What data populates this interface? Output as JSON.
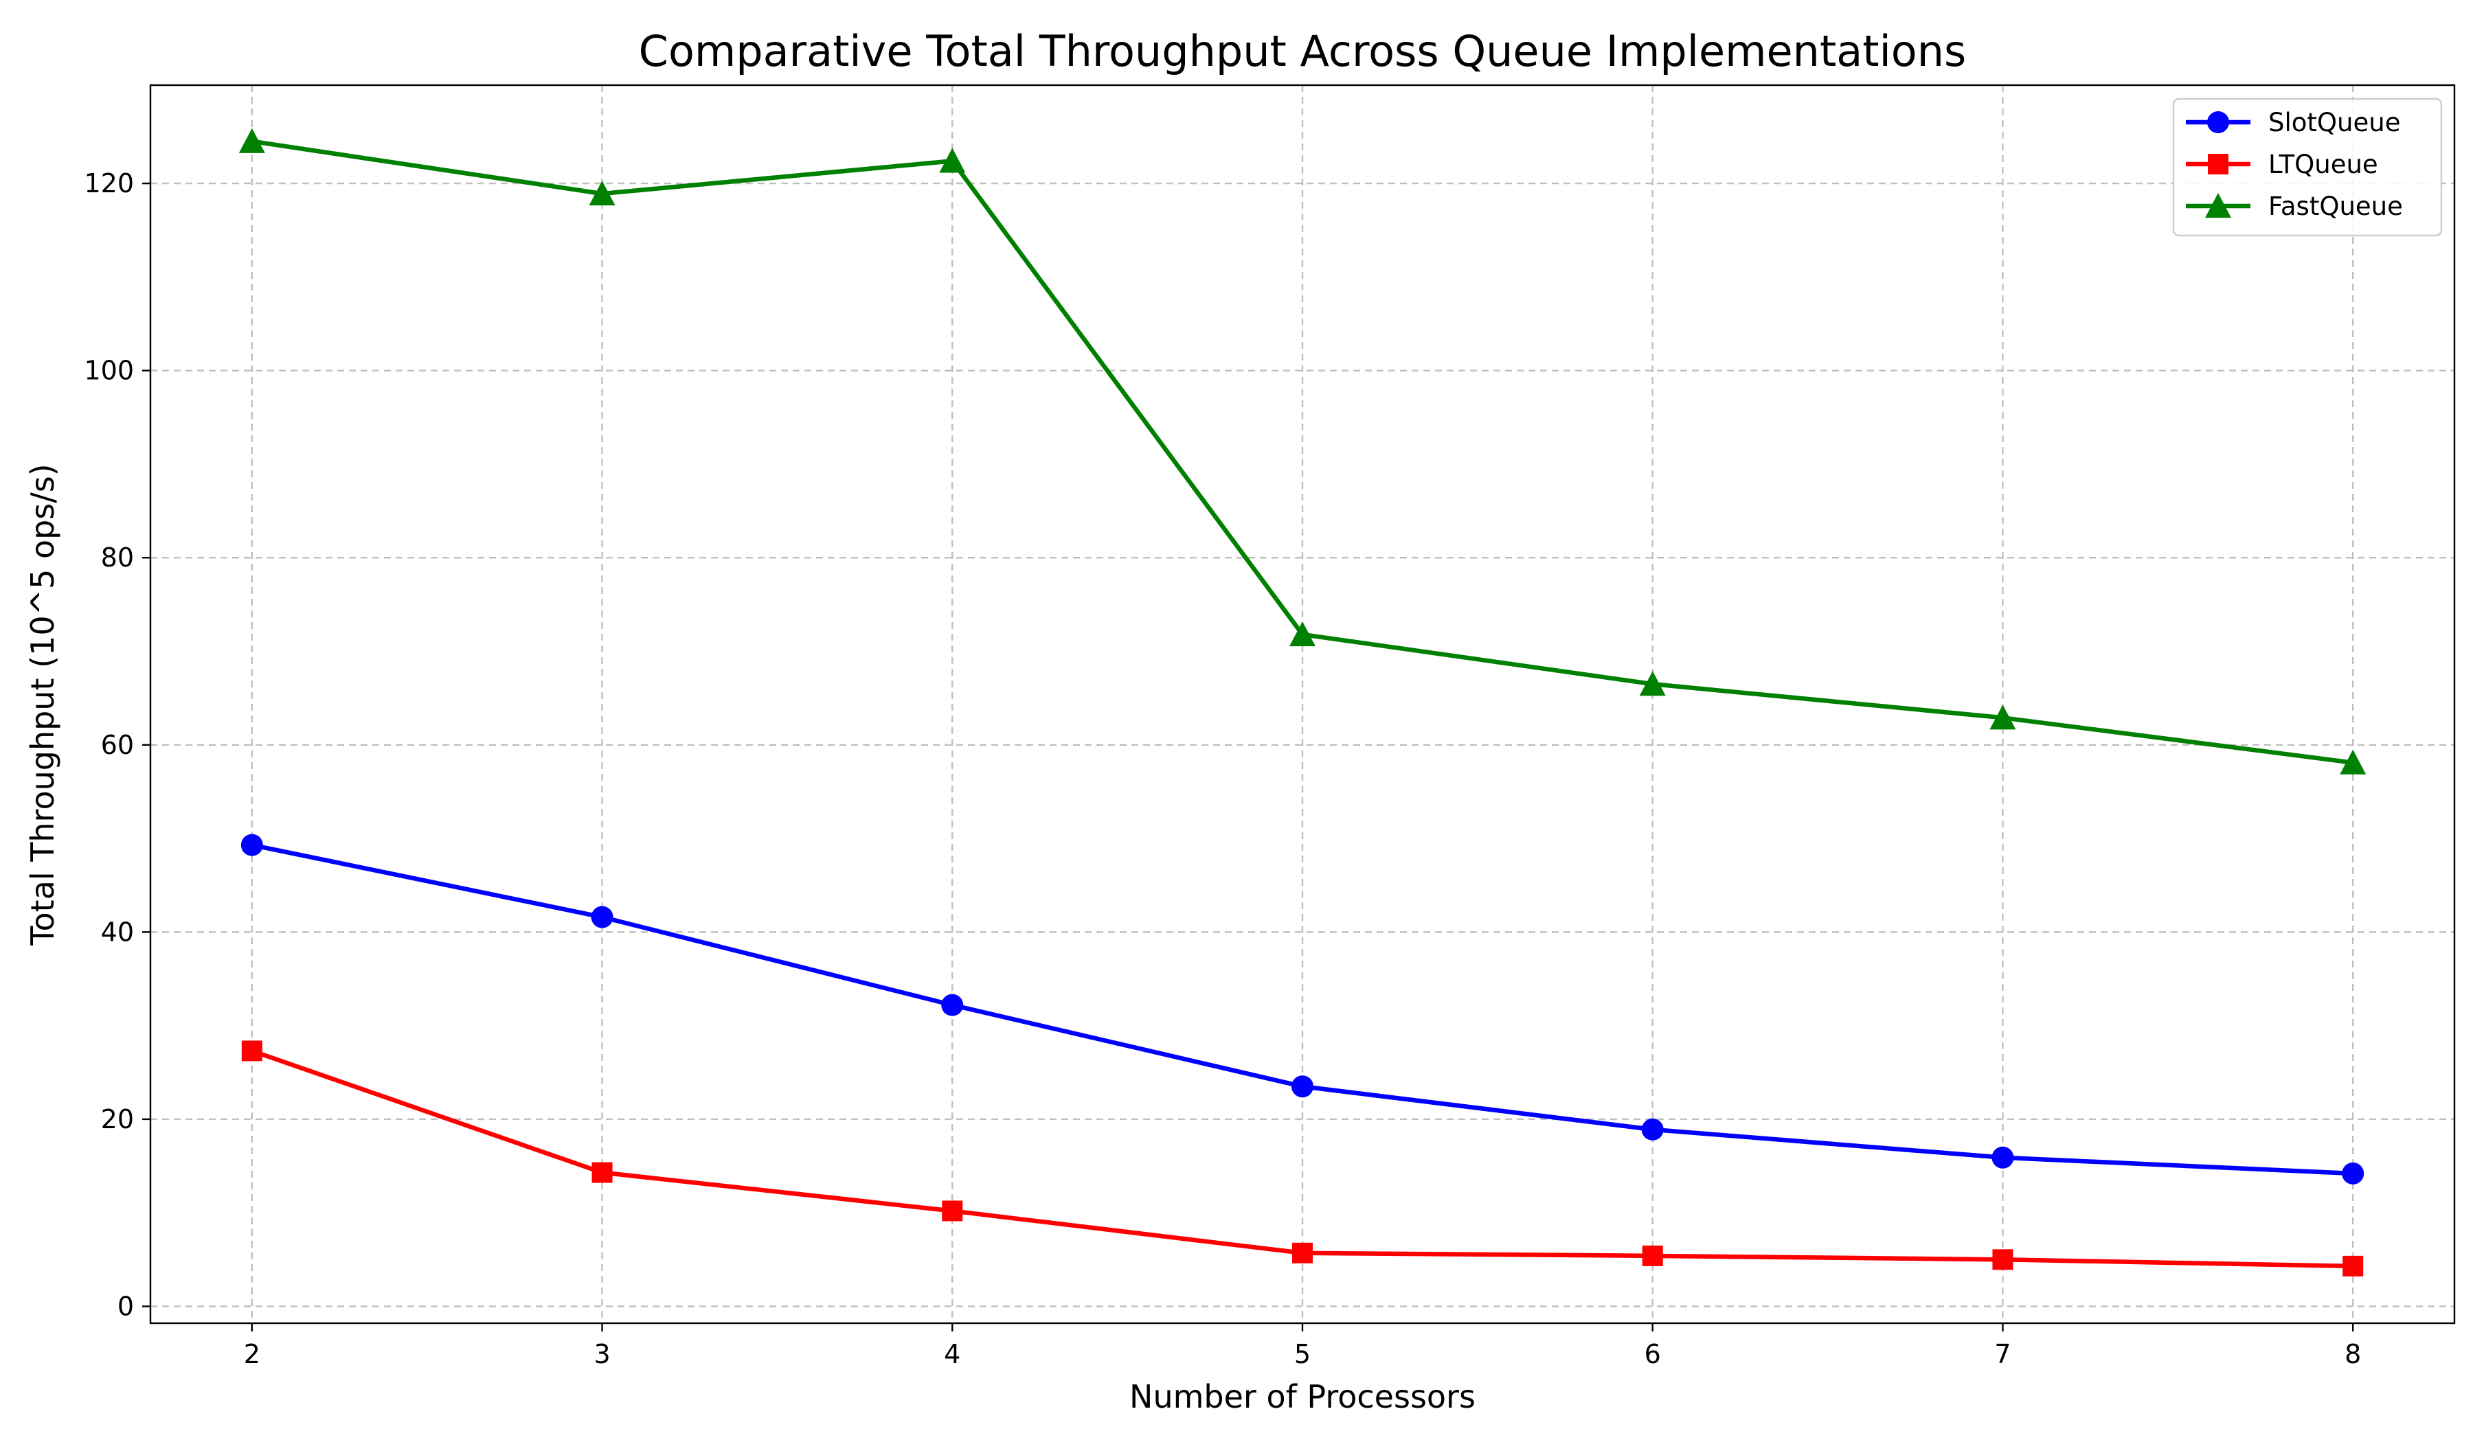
{
  "chart_data": {
    "type": "line",
    "title": "Comparative Total Throughput Across Queue Implementations",
    "xlabel": "Number of Processors",
    "ylabel": "Total Throughput (10^5 ops/s)",
    "x": [
      2,
      3,
      4,
      5,
      6,
      7,
      8
    ],
    "xlim": [
      1.71,
      8.29
    ],
    "ylim": [
      -1.8,
      130.5
    ],
    "xticks": [
      2,
      3,
      4,
      5,
      6,
      7,
      8
    ],
    "yticks": [
      0,
      20,
      40,
      60,
      80,
      100,
      120
    ],
    "grid": true,
    "legend_position": "upper right",
    "series": [
      {
        "name": "SlotQueue",
        "color": "#0000ff",
        "marker": "circle",
        "values": [
          49.3,
          41.6,
          32.2,
          23.5,
          18.9,
          15.9,
          14.2
        ]
      },
      {
        "name": "LTQueue",
        "color": "#ff0000",
        "marker": "square",
        "values": [
          27.3,
          14.3,
          10.2,
          5.7,
          5.4,
          5.0,
          4.3
        ]
      },
      {
        "name": "FastQueue",
        "color": "#008000",
        "marker": "triangle",
        "values": [
          124.5,
          118.9,
          122.4,
          71.8,
          66.5,
          62.9,
          58.1
        ]
      }
    ]
  }
}
